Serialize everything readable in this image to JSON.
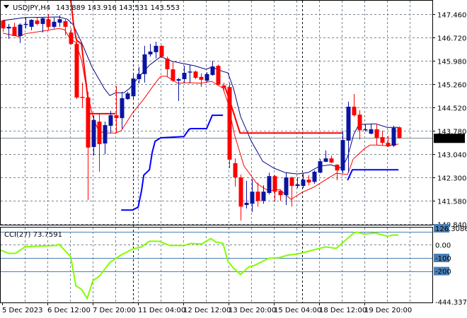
{
  "header": {
    "symbol": "USDJPY,H4",
    "ohlc": "143.889 143.916 143.531 143.553",
    "menu_icon": "triangle-down-icon"
  },
  "colors": {
    "bull": "#0a14a0",
    "bear": "#ff0000",
    "ma_fast": "#00007f",
    "ma_slow": "#ff0000",
    "step_red": "#ff0000",
    "step_blue": "#0000ff",
    "cci": "#80ff00",
    "grid": "#7a8594",
    "level": "#4a7fb5"
  },
  "price_axis": {
    "ticks": [
      "147.460",
      "146.720",
      "145.980",
      "145.260",
      "144.520",
      "143.780",
      "143.040",
      "142.300",
      "141.580",
      "140.840"
    ],
    "current": "143.553",
    "range": [
      140.84,
      147.46
    ]
  },
  "time_axis": {
    "labels": [
      "5 Dec 2023",
      "6 Dec 12:00",
      "7 Dec 20:00",
      "11 Dec 04:00",
      "12 Dec 12:00",
      "13 Dec 20:00",
      "15 Dec 04:00",
      "18 Dec 12:00",
      "19 Dec 20:00"
    ]
  },
  "candles": [
    [
      147.26,
      147.28,
      146.9,
      147.01
    ],
    [
      147.01,
      147.15,
      146.68,
      147.06
    ],
    [
      147.06,
      147.19,
      146.77,
      146.77
    ],
    [
      146.77,
      147.17,
      146.55,
      147.13
    ],
    [
      147.13,
      147.37,
      147.01,
      147.15
    ],
    [
      147.06,
      147.3,
      146.95,
      147.28
    ],
    [
      147.26,
      147.35,
      147.1,
      147.15
    ],
    [
      147.15,
      147.35,
      146.88,
      147.33
    ],
    [
      147.3,
      147.46,
      146.97,
      147.06
    ],
    [
      147.06,
      147.35,
      147.01,
      147.22
    ],
    [
      147.19,
      147.42,
      147.06,
      147.3
    ],
    [
      147.24,
      147.33,
      146.79,
      147.06
    ],
    [
      146.88,
      147.01,
      146.5,
      146.52
    ],
    [
      146.52,
      146.68,
      144.78,
      144.83
    ],
    [
      144.85,
      145.3,
      144.52,
      144.83
    ],
    [
      144.83,
      145.01,
      141.6,
      143.25
    ],
    [
      143.27,
      144.27,
      143.0,
      144.12
    ],
    [
      144.07,
      144.34,
      142.49,
      143.36
    ],
    [
      143.38,
      144.07,
      143.04,
      143.96
    ],
    [
      143.94,
      144.41,
      143.71,
      144.27
    ],
    [
      144.27,
      145.19,
      143.71,
      144.18
    ],
    [
      144.18,
      145.01,
      143.85,
      144.81
    ],
    [
      144.78,
      145.01,
      144.76,
      144.96
    ],
    [
      144.87,
      145.59,
      144.74,
      145.43
    ],
    [
      145.41,
      145.79,
      145.28,
      145.57
    ],
    [
      145.57,
      146.46,
      145.3,
      146.19
    ],
    [
      146.19,
      146.52,
      146.12,
      146.28
    ],
    [
      146.26,
      146.59,
      146.06,
      146.46
    ],
    [
      146.46,
      146.48,
      146.08,
      146.12
    ],
    [
      146.06,
      146.12,
      145.5,
      145.72
    ],
    [
      145.72,
      145.94,
      145.32,
      145.36
    ],
    [
      145.36,
      145.45,
      144.72,
      145.41
    ],
    [
      145.41,
      145.83,
      145.3,
      145.61
    ],
    [
      145.63,
      145.85,
      145.28,
      145.65
    ],
    [
      145.65,
      145.68,
      145.41,
      145.45
    ],
    [
      145.48,
      145.59,
      145.16,
      145.39
    ],
    [
      145.36,
      145.63,
      145.32,
      145.57
    ],
    [
      145.54,
      145.99,
      145.52,
      145.81
    ],
    [
      145.83,
      145.87,
      145.21,
      145.23
    ],
    [
      145.21,
      145.3,
      145.01,
      145.14
    ],
    [
      145.16,
      145.3,
      142.6,
      142.87
    ],
    [
      142.76,
      142.91,
      142.02,
      142.31
    ],
    [
      142.31,
      142.4,
      140.95,
      141.39
    ],
    [
      141.44,
      142.2,
      141.33,
      141.51
    ],
    [
      141.48,
      142.26,
      141.22,
      141.86
    ],
    [
      141.86,
      142.15,
      141.39,
      141.57
    ],
    [
      141.57,
      142.06,
      141.48,
      141.86
    ],
    [
      141.82,
      142.46,
      141.77,
      142.35
    ],
    [
      142.35,
      142.38,
      141.55,
      141.86
    ],
    [
      141.89,
      141.93,
      141.57,
      141.75
    ],
    [
      141.75,
      142.46,
      141.44,
      142.31
    ],
    [
      142.31,
      142.33,
      141.39,
      142.04
    ],
    [
      142.04,
      142.31,
      141.97,
      142.09
    ],
    [
      142.04,
      142.44,
      141.97,
      142.24
    ],
    [
      142.24,
      142.38,
      142.06,
      142.15
    ],
    [
      142.17,
      142.53,
      142.11,
      142.49
    ],
    [
      142.46,
      142.89,
      142.44,
      142.82
    ],
    [
      142.8,
      143.16,
      142.8,
      142.91
    ],
    [
      142.91,
      143.0,
      142.76,
      142.78
    ],
    [
      142.71,
      142.73,
      142.22,
      142.53
    ],
    [
      142.53,
      143.78,
      142.44,
      143.49
    ],
    [
      143.47,
      144.7,
      142.46,
      144.54
    ],
    [
      144.54,
      144.94,
      144.23,
      144.27
    ],
    [
      144.29,
      144.43,
      143.51,
      143.8
    ],
    [
      143.8,
      143.98,
      143.76,
      143.83
    ],
    [
      143.69,
      144.0,
      143.67,
      143.83
    ],
    [
      143.83,
      144.0,
      143.33,
      143.56
    ],
    [
      143.58,
      143.78,
      143.31,
      143.4
    ],
    [
      143.4,
      143.62,
      143.27,
      143.29
    ],
    [
      143.31,
      143.94,
      143.27,
      143.87
    ],
    [
      143.889,
      143.916,
      143.531,
      143.553
    ]
  ],
  "ma_fast": [
    [
      0,
      147.26
    ],
    [
      3.9,
      147.35
    ],
    [
      9.9,
      147.37
    ],
    [
      11.4,
      147.3
    ],
    [
      12.4,
      147.13
    ],
    [
      13.9,
      146.57
    ],
    [
      15.75,
      145.79
    ],
    [
      17.9,
      145.12
    ],
    [
      18.9,
      144.89
    ],
    [
      19.9,
      144.98
    ],
    [
      21.4,
      144.98
    ],
    [
      22.4,
      145.12
    ],
    [
      23.9,
      145.45
    ],
    [
      25.9,
      145.85
    ],
    [
      27.9,
      146.12
    ],
    [
      29.9,
      145.97
    ],
    [
      31.9,
      145.9
    ],
    [
      33.9,
      145.83
    ],
    [
      35.9,
      145.72
    ],
    [
      36.9,
      145.79
    ],
    [
      38.9,
      145.65
    ],
    [
      39.75,
      145.61
    ],
    [
      40.75,
      145.12
    ],
    [
      42,
      144.23
    ],
    [
      43.9,
      143.45
    ],
    [
      45.9,
      142.82
    ],
    [
      47.9,
      142.6
    ],
    [
      49.9,
      142.46
    ],
    [
      52,
      142.42
    ],
    [
      53.9,
      142.46
    ],
    [
      55.9,
      142.66
    ],
    [
      57.9,
      142.71
    ],
    [
      59.9,
      142.6
    ],
    [
      60.9,
      142.96
    ],
    [
      62,
      143.67
    ],
    [
      62.9,
      143.98
    ],
    [
      65.9,
      144.0
    ],
    [
      67.9,
      143.89
    ],
    [
      69.9,
      143.89
    ]
  ],
  "ma_slow": [
    [
      0,
      146.86
    ],
    [
      2.9,
      146.75
    ],
    [
      3.9,
      146.84
    ],
    [
      7.9,
      146.95
    ],
    [
      9.9,
      147.01
    ],
    [
      10.9,
      146.97
    ],
    [
      11.9,
      146.68
    ],
    [
      12.9,
      146.57
    ],
    [
      13.9,
      146.01
    ],
    [
      14.9,
      145.01
    ],
    [
      15.9,
      144.23
    ],
    [
      16.9,
      143.78
    ],
    [
      17.9,
      143.71
    ],
    [
      19.9,
      143.71
    ],
    [
      20.9,
      143.78
    ],
    [
      22.9,
      144.34
    ],
    [
      24.9,
      144.78
    ],
    [
      26.9,
      145.28
    ],
    [
      27.9,
      145.5
    ],
    [
      28.9,
      145.5
    ],
    [
      30.9,
      145.28
    ],
    [
      32.9,
      145.3
    ],
    [
      34.9,
      145.28
    ],
    [
      36.9,
      145.34
    ],
    [
      37.9,
      145.23
    ],
    [
      38.9,
      145.12
    ],
    [
      39.75,
      144.67
    ],
    [
      40.9,
      143.67
    ],
    [
      42.6,
      142.67
    ],
    [
      44.9,
      142.11
    ],
    [
      46.9,
      141.89
    ],
    [
      48.9,
      141.93
    ],
    [
      50.9,
      141.62
    ],
    [
      52.9,
      141.84
    ],
    [
      54.9,
      142.0
    ],
    [
      56.9,
      142.22
    ],
    [
      58.9,
      142.44
    ],
    [
      60.9,
      142.4
    ],
    [
      61.9,
      142.89
    ],
    [
      63.9,
      143.22
    ],
    [
      64.9,
      143.33
    ],
    [
      65.9,
      143.33
    ],
    [
      67.9,
      143.31
    ],
    [
      69.9,
      143.36
    ]
  ],
  "step_red": [
    [
      [
        12,
        147.91
      ],
      [
        12.5,
        147.13
      ],
      [
        13,
        146.64
      ],
      [
        13.9,
        146.52
      ],
      [
        15,
        144.83
      ],
      [
        15.25,
        144.32
      ],
      [
        19.9,
        144.32
      ]
    ],
    [
      [
        39.25,
        145.16
      ],
      [
        40,
        144.78
      ],
      [
        41.9,
        143.71
      ],
      [
        59.9,
        143.71
      ]
    ]
  ],
  "step_blue": [
    [
      [
        20.9,
        141.28
      ],
      [
        22.9,
        141.28
      ],
      [
        23.9,
        141.37
      ],
      [
        24.5,
        141.89
      ],
      [
        24.9,
        142.38
      ],
      [
        25.9,
        142.55
      ],
      [
        26.4,
        143.11
      ],
      [
        26.9,
        143.45
      ],
      [
        27.9,
        143.56
      ],
      [
        32,
        143.6
      ],
      [
        32.9,
        143.83
      ],
      [
        33.25,
        143.85
      ],
      [
        36,
        143.85
      ],
      [
        37,
        144.27
      ],
      [
        38.9,
        144.27
      ]
    ],
    [
      [
        60.9,
        142.22
      ],
      [
        61.75,
        142.55
      ],
      [
        69.9,
        142.55
      ]
    ]
  ],
  "cci": {
    "label": "CCI(27) 73.7591",
    "axis": {
      "max": "126.3086",
      "zero": "0.00",
      "l1": "-100",
      "l2": "-200",
      "min": "-444.337"
    },
    "range": [
      -444.337,
      126.3086
    ],
    "levels": [
      100,
      0,
      -100,
      -200
    ],
    "values": [
      [
        -0.5,
        -38
      ],
      [
        1,
        -65
      ],
      [
        2.25,
        -65
      ],
      [
        3.9,
        -16
      ],
      [
        5.75,
        -11
      ],
      [
        9.5,
        -5
      ],
      [
        9.9,
        5
      ],
      [
        12,
        -91
      ],
      [
        12.9,
        -312
      ],
      [
        13.9,
        -339
      ],
      [
        14.9,
        -409
      ],
      [
        15.9,
        -274
      ],
      [
        17.1,
        -237
      ],
      [
        18.9,
        -135
      ],
      [
        20.75,
        -81
      ],
      [
        22.9,
        -32
      ],
      [
        24.5,
        -16
      ],
      [
        25.9,
        27
      ],
      [
        27.6,
        27
      ],
      [
        29.5,
        -5
      ],
      [
        32,
        -5
      ],
      [
        33.25,
        11
      ],
      [
        35.1,
        5
      ],
      [
        36.75,
        48
      ],
      [
        37.6,
        22
      ],
      [
        38.9,
        11
      ],
      [
        39.75,
        -124
      ],
      [
        40.75,
        -178
      ],
      [
        42,
        -226
      ],
      [
        43.5,
        -167
      ],
      [
        44.5,
        -156
      ],
      [
        47,
        -102
      ],
      [
        48.9,
        -97
      ],
      [
        50.1,
        -81
      ],
      [
        52.6,
        -65
      ],
      [
        54.5,
        -43
      ],
      [
        57,
        -16
      ],
      [
        58.9,
        -27
      ],
      [
        62,
        91
      ],
      [
        62.6,
        97
      ],
      [
        63.9,
        81
      ],
      [
        65.75,
        91
      ],
      [
        67.6,
        70
      ],
      [
        68,
        65
      ],
      [
        68.9,
        75
      ],
      [
        69.9,
        74
      ]
    ]
  }
}
